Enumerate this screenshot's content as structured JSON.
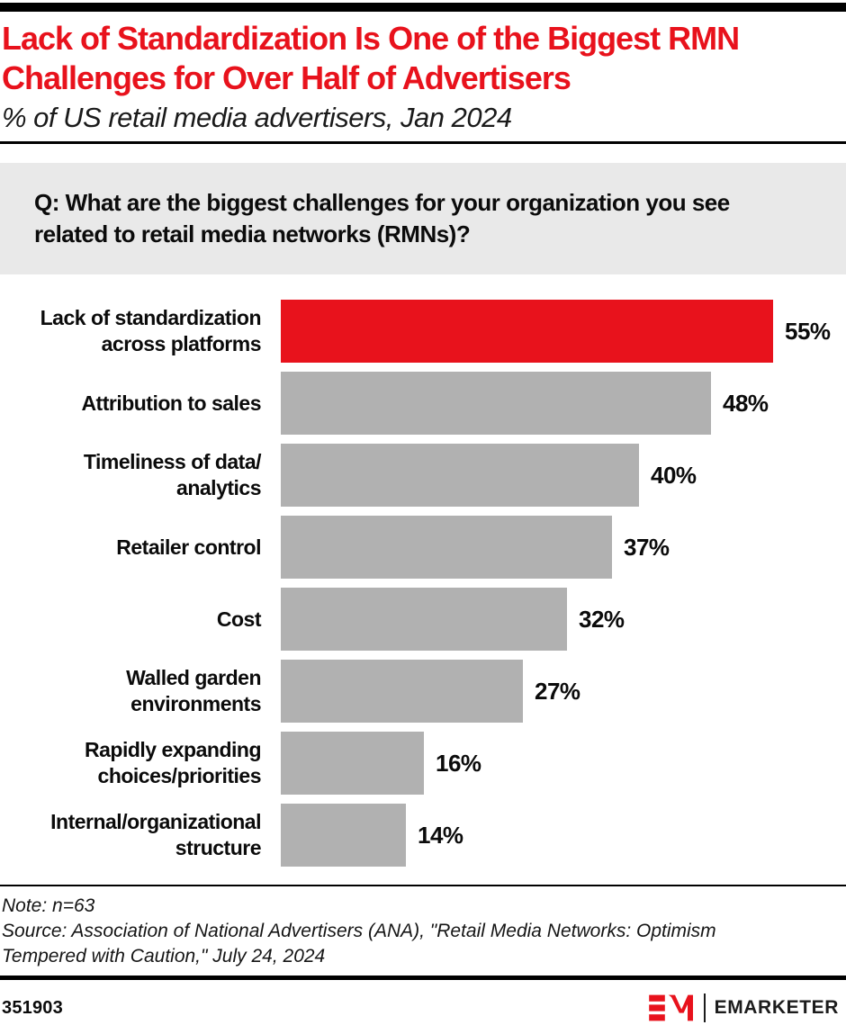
{
  "header": {
    "title_lines": [
      "Lack of Standardization Is One of the Biggest RMN",
      "Challenges for Over Half of Advertisers"
    ],
    "subtitle": "% of US retail media advertisers, Jan 2024"
  },
  "question_lines": [
    "Q: What are the biggest challenges for your organization you see",
    "related to retail media networks (RMNs)?"
  ],
  "chart_data": {
    "type": "bar",
    "orientation": "horizontal",
    "title": "Lack of Standardization Is One of the Biggest RMN Challenges for Over Half of Advertisers",
    "subtitle": "% of US retail media advertisers, Jan 2024",
    "unit": "%",
    "categories": [
      "Lack of standardization across platforms",
      "Attribution to sales",
      "Timeliness of data/analytics",
      "Retailer control",
      "Cost",
      "Walled garden environments",
      "Rapidly expanding choices/priorities",
      "Internal/organizational structure"
    ],
    "category_label_lines": [
      [
        "Lack of standardization",
        "across platforms"
      ],
      [
        "Attribution to sales"
      ],
      [
        "Timeliness of data/",
        "analytics"
      ],
      [
        "Retailer control"
      ],
      [
        "Cost"
      ],
      [
        "Walled garden",
        "environments"
      ],
      [
        "Rapidly expanding",
        "choices/priorities"
      ],
      [
        "Internal/organizational",
        "structure"
      ]
    ],
    "values": [
      55,
      48,
      40,
      37,
      32,
      27,
      16,
      14
    ],
    "value_labels": [
      "55%",
      "48%",
      "40%",
      "37%",
      "32%",
      "27%",
      "16%",
      "14%"
    ],
    "xlim": [
      0,
      63
    ],
    "grid": false,
    "legend": false,
    "highlight_index": 0,
    "colors": {
      "highlight_bar": "#e8121c",
      "default_bar": "#b1b1b1"
    }
  },
  "footer": {
    "note": "Note: n=63",
    "source_lines": [
      "Source: Association of National Advertisers (ANA), \"Retail Media Networks: Optimism",
      "Tempered with Caution,\" July 24, 2024"
    ],
    "chart_id": "351903",
    "brand_wordmark": "EMARKETER"
  },
  "colors": {
    "accent_red": "#e8121c",
    "bar_gray": "#b1b1b1",
    "question_bg": "#e9e9e9",
    "rule_black": "#000000"
  }
}
